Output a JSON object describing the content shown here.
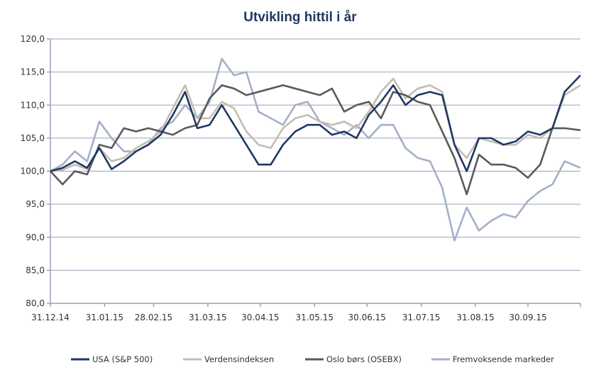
{
  "chart_data": {
    "type": "line",
    "title": "Utvikling hittil i år",
    "xlabel": "",
    "ylabel": "",
    "ylim": [
      80,
      120
    ],
    "yticks": [
      "80,0",
      "85,0",
      "90,0",
      "95,0",
      "100,0",
      "105,0",
      "110,0",
      "115,0",
      "120,0"
    ],
    "ytick_values": [
      80,
      85,
      90,
      95,
      100,
      105,
      110,
      115,
      120
    ],
    "xticks": [
      "31.12.14",
      "31.01.15",
      "28.02.15",
      "31.03.15",
      "30.04.15",
      "31.05.15",
      "30.06.15",
      "31.07.15",
      "31.08.15",
      "30.09.15"
    ],
    "xtick_days": [
      0,
      31,
      59,
      90,
      120,
      151,
      181,
      212,
      243,
      273
    ],
    "x_range_days": [
      0,
      303
    ],
    "x_days": [
      0,
      7,
      14,
      21,
      28,
      35,
      42,
      49,
      56,
      63,
      70,
      77,
      84,
      91,
      98,
      105,
      112,
      119,
      126,
      133,
      140,
      147,
      154,
      161,
      168,
      175,
      182,
      189,
      196,
      203,
      210,
      217,
      224,
      231,
      238,
      245,
      252,
      259,
      266,
      273,
      280,
      287,
      294,
      303
    ],
    "grid": true,
    "legend_position": "bottom",
    "series": [
      {
        "name": "USA (S&P 500)",
        "color": "#1f3864",
        "values": [
          100,
          100.5,
          101.5,
          100.5,
          103.5,
          100.3,
          101.5,
          103,
          104,
          105.5,
          108.5,
          112,
          106.5,
          107,
          110,
          107,
          104,
          101,
          101,
          104,
          106,
          107,
          107,
          105.5,
          106,
          105,
          108.5,
          110.5,
          113,
          110,
          111.5,
          112,
          111.5,
          104,
          100,
          105,
          105,
          104,
          104.5,
          106,
          105.5,
          106.5,
          112,
          114.5
        ]
      },
      {
        "name": "Verdensindeksen",
        "color": "#c4bdb0",
        "values": [
          100,
          100.2,
          101,
          100.3,
          103.5,
          101.5,
          102,
          103.5,
          104.5,
          106,
          109.5,
          113,
          108,
          108,
          110.5,
          109.5,
          106,
          104,
          103.5,
          106.5,
          108,
          108.5,
          107.5,
          107,
          107.5,
          106.5,
          109,
          112,
          114,
          111,
          112.5,
          113,
          112,
          104,
          102,
          105,
          104.5,
          104,
          104,
          105.5,
          105,
          106.5,
          111.5,
          113
        ]
      },
      {
        "name": "Oslo børs (OSEBX)",
        "color": "#5a5a5a",
        "values": [
          100,
          98,
          100,
          99.5,
          104,
          103.5,
          106.5,
          106,
          106.5,
          106,
          105.5,
          106.5,
          107,
          111,
          113,
          112.5,
          111.5,
          112,
          112.5,
          113,
          112.5,
          112,
          111.5,
          112.5,
          109,
          110,
          110.5,
          108,
          112,
          111.5,
          110.5,
          110,
          106,
          102,
          96.5,
          102.5,
          101,
          101,
          100.5,
          99,
          101,
          106.5,
          106.5,
          106.2
        ]
      },
      {
        "name": "Fremvoksende markeder",
        "color": "#a4b0c8",
        "values": [
          100,
          101,
          103,
          101.5,
          107.5,
          105,
          103,
          103,
          104,
          106.5,
          107.5,
          110,
          108,
          110.5,
          117,
          114.5,
          115,
          109,
          108,
          107,
          110,
          110.5,
          107.5,
          106.5,
          105.5,
          107,
          105,
          107,
          107,
          103.5,
          102,
          101.5,
          97.5,
          89.5,
          94.5,
          91,
          92.5,
          93.5,
          93,
          95.5,
          97,
          98,
          101.5,
          100.5
        ]
      }
    ]
  }
}
